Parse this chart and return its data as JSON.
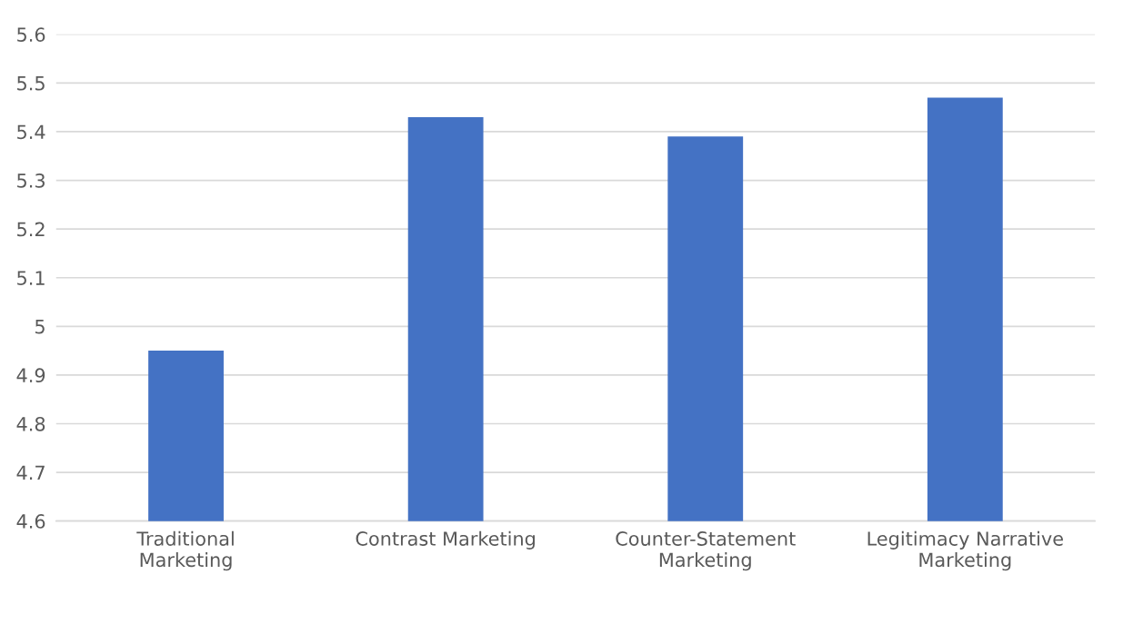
{
  "chart_data": {
    "type": "bar",
    "categories": [
      "Traditional Marketing",
      "Contrast Marketing",
      "Counter-Statement Marketing",
      "Legitimacy Narrative Marketing"
    ],
    "values": [
      4.95,
      5.43,
      5.39,
      5.47
    ],
    "color": "#4472c4",
    "ylim": [
      4.6,
      5.6
    ],
    "yticks": [
      4.6,
      4.7,
      4.8,
      4.9,
      5,
      5.1,
      5.2,
      5.3,
      5.4,
      5.5,
      5.6
    ],
    "grid": "y"
  }
}
